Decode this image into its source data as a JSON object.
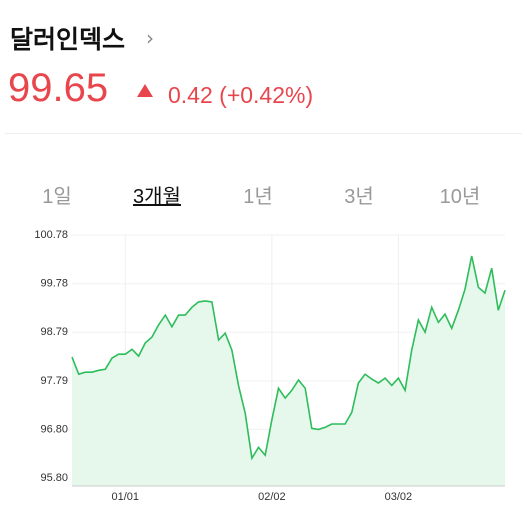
{
  "header": {
    "title": "달러인덱스",
    "price": "99.65",
    "change": "0.42",
    "change_pct": "(+0.42%)"
  },
  "tabs": [
    "1일",
    "3개월",
    "1년",
    "3년",
    "10년"
  ],
  "active_tab": 1,
  "chart_data": {
    "type": "area",
    "color": "#2dbd5a",
    "fill": "#e6f7ec",
    "grid": true,
    "categories": [
      null,
      null,
      null,
      null,
      null,
      null,
      null,
      null,
      "01/01",
      null,
      null,
      null,
      null,
      null,
      null,
      null,
      null,
      null,
      null,
      null,
      null,
      null,
      null,
      null,
      null,
      null,
      null,
      null,
      null,
      null,
      "02/02",
      null,
      null,
      null,
      null,
      null,
      null,
      null,
      null,
      null,
      null,
      null,
      null,
      null,
      null,
      null,
      null,
      null,
      null,
      "03/02",
      null,
      null,
      null,
      null,
      null,
      null,
      null,
      null,
      null,
      null,
      null,
      null,
      null,
      null,
      null,
      null
    ],
    "values": [
      98.28,
      97.93,
      97.97,
      97.97,
      98.01,
      98.03,
      98.26,
      98.34,
      98.34,
      98.44,
      98.3,
      98.57,
      98.69,
      98.94,
      99.14,
      98.9,
      99.14,
      99.14,
      99.3,
      99.41,
      99.43,
      99.41,
      98.63,
      98.77,
      98.42,
      97.7,
      97.13,
      96.21,
      96.43,
      96.27,
      96.99,
      97.64,
      97.44,
      97.6,
      97.81,
      97.64,
      96.82,
      96.8,
      96.84,
      96.91,
      96.91,
      96.91,
      97.15,
      97.75,
      97.93,
      97.83,
      97.75,
      97.85,
      97.7,
      97.85,
      97.6,
      98.42,
      99.04,
      98.79,
      99.3,
      98.99,
      99.16,
      98.87,
      99.24,
      99.67,
      100.35,
      99.71,
      99.59,
      100.1,
      99.24,
      99.65
    ],
    "ylim": [
      95.64,
      100.78
    ],
    "yticks": [
      {
        "value": 95.8,
        "label": "95.80"
      },
      {
        "value": 96.8,
        "label": "96.80"
      },
      97.79,
      98.79,
      99.78,
      100.78
    ]
  }
}
